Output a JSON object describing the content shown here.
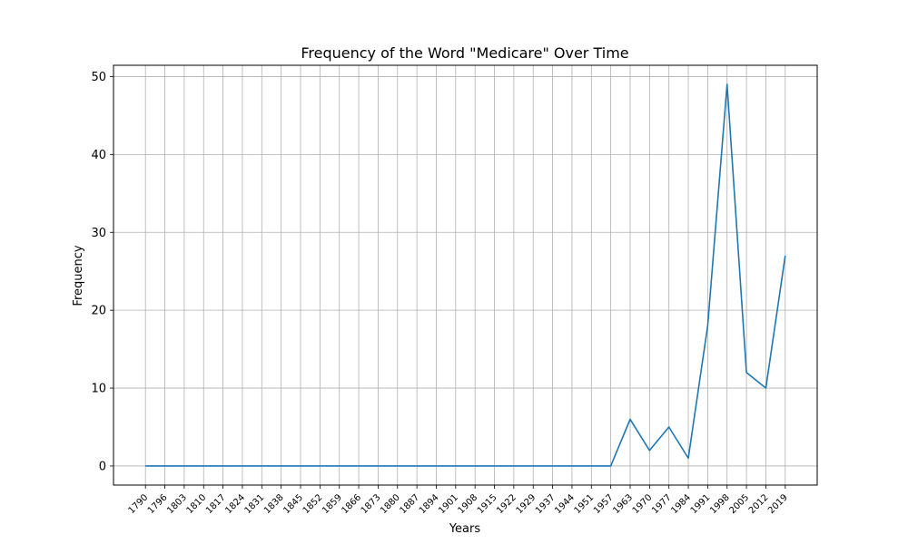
{
  "chart_data": {
    "type": "line",
    "title": "Frequency of the Word \"Medicare\" Over Time",
    "xlabel": "Years",
    "ylabel": "Frequency",
    "grid": true,
    "ylim": [
      -2.45,
      51.45
    ],
    "yticks": [
      0,
      10,
      20,
      30,
      40,
      50
    ],
    "line_color": "#1f77b4",
    "categories": [
      "1790",
      "1796",
      "1803",
      "1810",
      "1817",
      "1824",
      "1831",
      "1838",
      "1845",
      "1852",
      "1859",
      "1866",
      "1873",
      "1880",
      "1887",
      "1894",
      "1901",
      "1908",
      "1915",
      "1922",
      "1929",
      "1937",
      "1944",
      "1951",
      "1957",
      "1963",
      "1970",
      "1977",
      "1984",
      "1991",
      "1998",
      "2005",
      "2012",
      "2019"
    ],
    "series": [
      {
        "values": [
          0,
          0,
          0,
          0,
          0,
          0,
          0,
          0,
          0,
          0,
          0,
          0,
          0,
          0,
          0,
          0,
          0,
          0,
          0,
          0,
          0,
          0,
          0,
          0,
          0,
          6,
          2,
          5,
          1,
          18,
          49,
          12,
          10,
          27
        ]
      }
    ]
  }
}
